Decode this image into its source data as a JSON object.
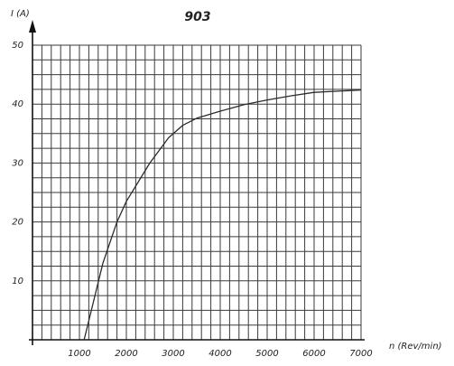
{
  "chart_data": {
    "type": "line",
    "title": "903",
    "xlabel": "n (Rev/min)",
    "ylabel": "I (A)",
    "xlim": [
      0,
      7000
    ],
    "ylim": [
      0,
      50
    ],
    "grid": true,
    "xticks": [
      1000,
      2000,
      3000,
      4000,
      5000,
      6000,
      7000
    ],
    "yticks": [
      10,
      20,
      30,
      40,
      50
    ],
    "x_tick_labels": [
      "1000",
      "2000",
      "3000",
      "4000",
      "5000",
      "6000",
      "7000"
    ],
    "y_tick_labels": [
      "10",
      "20",
      "30",
      "40",
      "50"
    ],
    "series": [
      {
        "x": [
          1100,
          1300,
          1500,
          1800,
          2000,
          2500,
          2900,
          3200,
          3500,
          4000,
          4500,
          5000,
          5500,
          6000,
          6500,
          7000
        ],
        "values": [
          0,
          6.5,
          13,
          20,
          23.5,
          30,
          34.3,
          36.4,
          37.6,
          38.8,
          39.9,
          40.7,
          41.4,
          42,
          42.2,
          42.4
        ]
      }
    ],
    "line_color": "#2b2b2b",
    "grid_color": "#3a3a3a"
  }
}
